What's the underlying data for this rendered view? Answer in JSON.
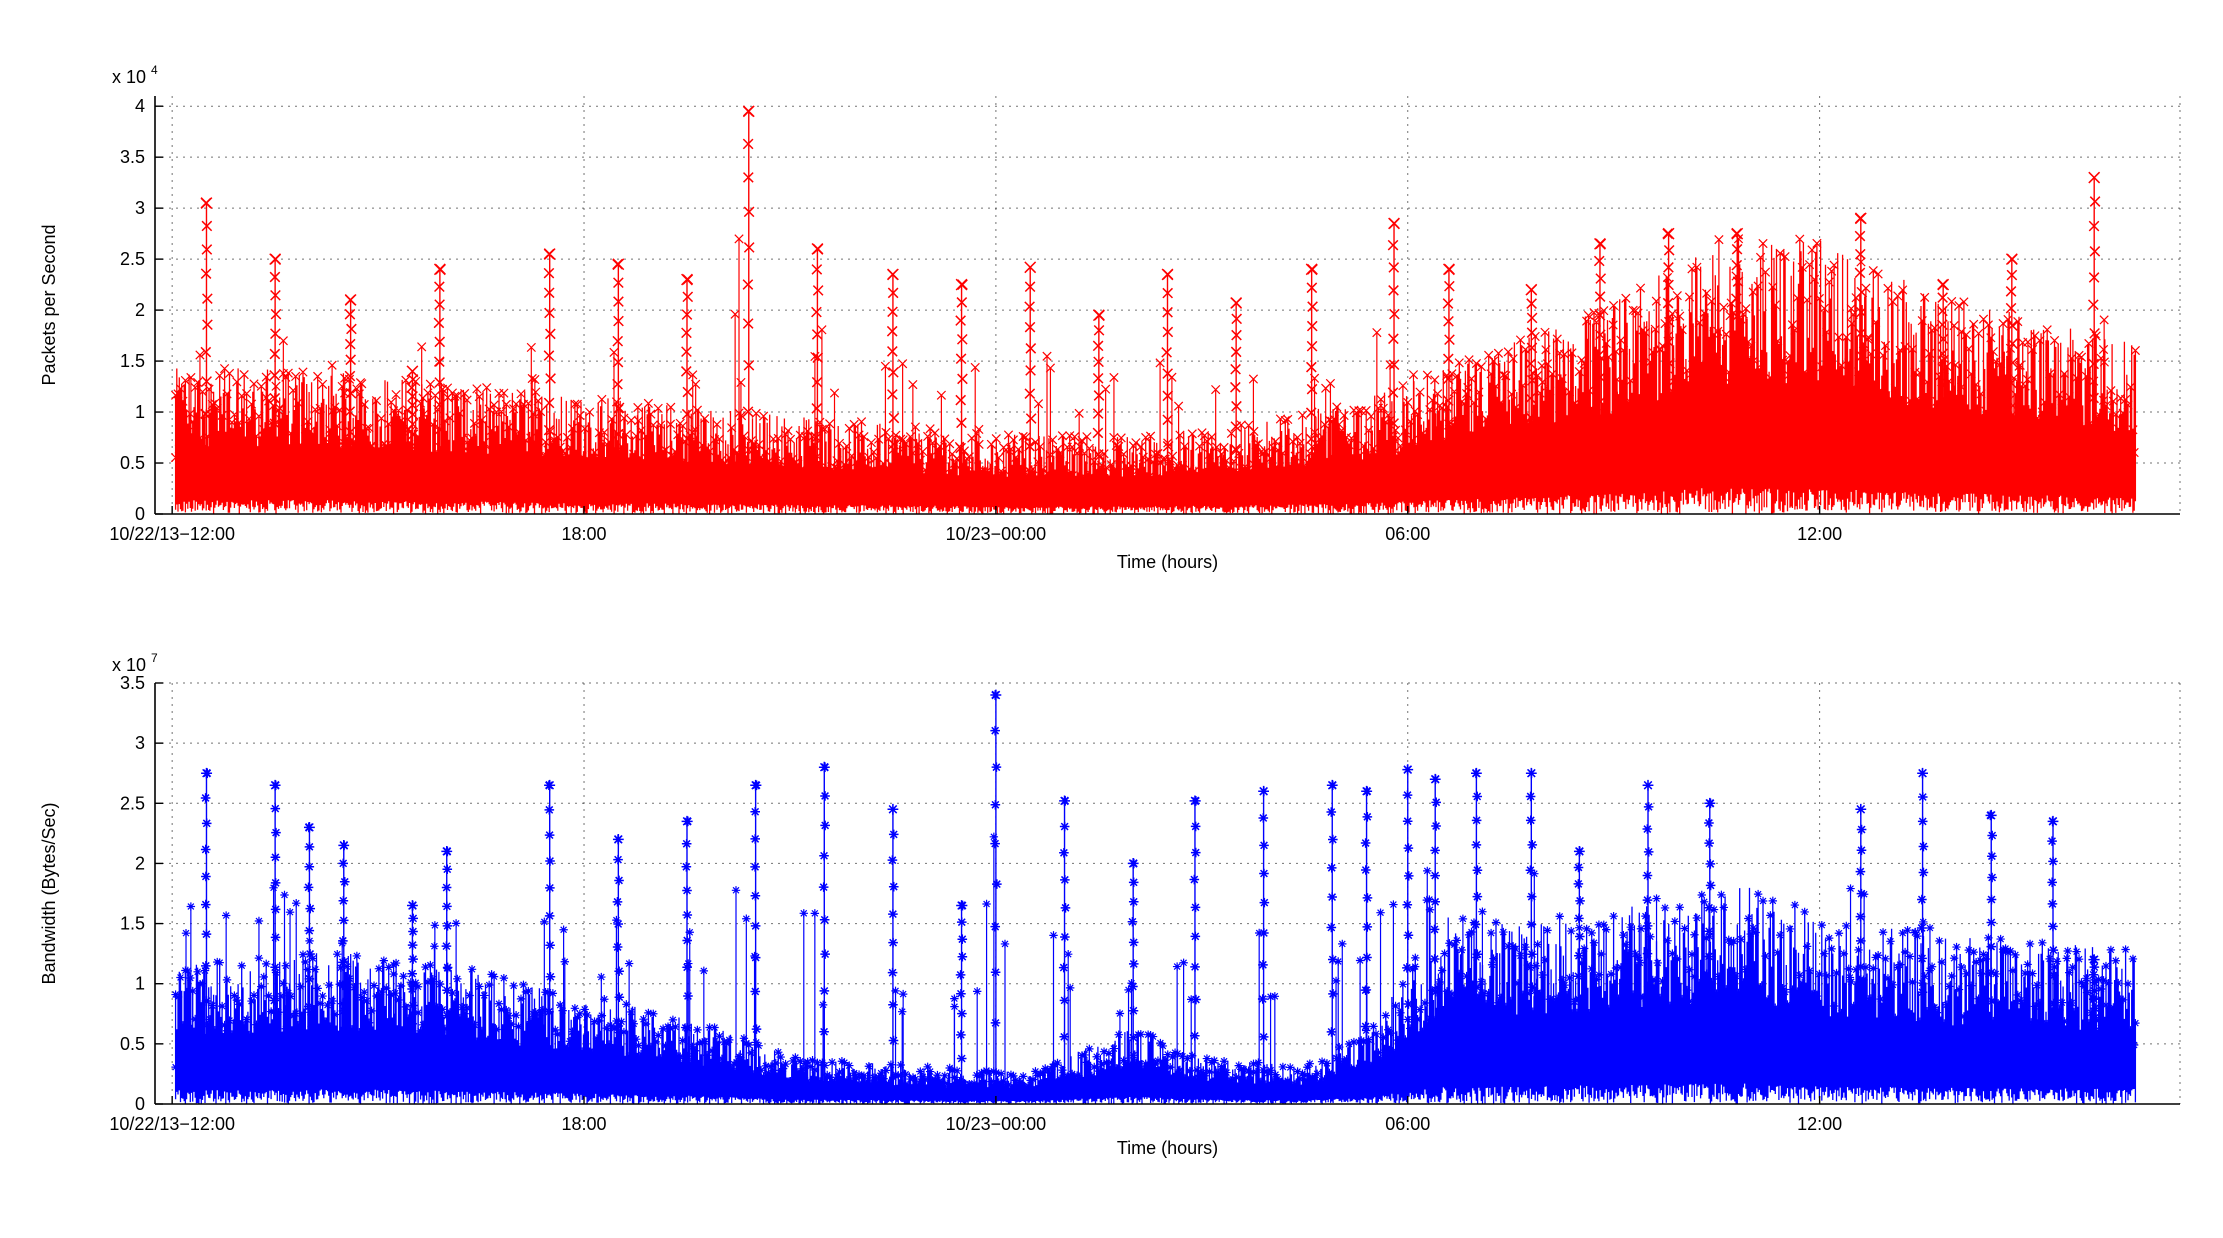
{
  "chart_data": [
    {
      "type": "line",
      "marker": "x",
      "color": "#ff0000",
      "ylabel": "Packets per Second",
      "xlabel": "Time (hours)",
      "y_exponent_base": "x 10",
      "y_exponent": "4",
      "ylim": [
        0,
        4.1
      ],
      "xlim": [
        -0.25,
        29.25
      ],
      "yticks": [
        {
          "v": 0,
          "label": "0"
        },
        {
          "v": 0.5,
          "label": "0.5"
        },
        {
          "v": 1,
          "label": "1"
        },
        {
          "v": 1.5,
          "label": "1.5"
        },
        {
          "v": 2,
          "label": "2"
        },
        {
          "v": 2.5,
          "label": "2.5"
        },
        {
          "v": 3,
          "label": "3"
        },
        {
          "v": 3.5,
          "label": "3.5"
        },
        {
          "v": 4,
          "label": "4"
        }
      ],
      "xticks": [
        {
          "v": 0,
          "label": "10/22/13−12:00"
        },
        {
          "v": 6,
          "label": "18:00"
        },
        {
          "v": 12,
          "label": "10/23−00:00"
        },
        {
          "v": 18,
          "label": "06:00"
        },
        {
          "v": 24,
          "label": "12:00"
        }
      ],
      "grid": true,
      "data_start_hour": 0.05,
      "data_end_hour": 28.6,
      "baseline": [
        [
          0.05,
          0.55
        ],
        [
          2,
          0.55
        ],
        [
          4,
          0.5
        ],
        [
          6,
          0.45
        ],
        [
          8,
          0.4
        ],
        [
          10,
          0.35
        ],
        [
          12,
          0.3
        ],
        [
          14,
          0.3
        ],
        [
          16,
          0.35
        ],
        [
          17.5,
          0.45
        ],
        [
          19,
          0.6
        ],
        [
          21,
          0.8
        ],
        [
          22.5,
          1.05
        ],
        [
          24,
          1.05
        ],
        [
          25.5,
          0.85
        ],
        [
          27,
          0.75
        ],
        [
          28.6,
          0.65
        ]
      ],
      "spikes": [
        [
          0.5,
          3.05
        ],
        [
          1.5,
          2.5
        ],
        [
          2.6,
          2.1
        ],
        [
          3.5,
          1.4
        ],
        [
          3.9,
          2.4
        ],
        [
          5.5,
          2.55
        ],
        [
          6.5,
          2.45
        ],
        [
          7.5,
          2.3
        ],
        [
          8.4,
          3.95
        ],
        [
          9.4,
          2.6
        ],
        [
          10.5,
          2.35
        ],
        [
          11.5,
          2.25
        ],
        [
          12.5,
          2.42
        ],
        [
          13.5,
          1.95
        ],
        [
          14.5,
          2.35
        ],
        [
          15.5,
          2.07
        ],
        [
          16.6,
          2.4
        ],
        [
          17.8,
          2.85
        ],
        [
          18.6,
          2.4
        ],
        [
          19.8,
          2.2
        ],
        [
          20.8,
          2.65
        ],
        [
          21.8,
          2.75
        ],
        [
          22.8,
          2.75
        ],
        [
          24.6,
          2.9
        ],
        [
          25.8,
          2.25
        ],
        [
          26.8,
          2.5
        ],
        [
          28.0,
          3.3
        ]
      ]
    },
    {
      "type": "line",
      "marker": "*",
      "color": "#0000ff",
      "ylabel": "Bandwidth (Bytes/Sec)",
      "xlabel": "Time (hours)",
      "y_exponent_base": "x 10",
      "y_exponent": "7",
      "ylim": [
        0,
        3.5
      ],
      "xlim": [
        -0.25,
        29.25
      ],
      "yticks": [
        {
          "v": 0,
          "label": "0"
        },
        {
          "v": 0.5,
          "label": "0.5"
        },
        {
          "v": 1,
          "label": "1"
        },
        {
          "v": 1.5,
          "label": "1.5"
        },
        {
          "v": 2,
          "label": "2"
        },
        {
          "v": 2.5,
          "label": "2.5"
        },
        {
          "v": 3,
          "label": "3"
        },
        {
          "v": 3.5,
          "label": "3.5"
        }
      ],
      "xticks": [
        {
          "v": 0,
          "label": "10/22/13−12:00"
        },
        {
          "v": 6,
          "label": "18:00"
        },
        {
          "v": 12,
          "label": "10/23−00:00"
        },
        {
          "v": 18,
          "label": "06:00"
        },
        {
          "v": 24,
          "label": "12:00"
        }
      ],
      "grid": true,
      "data_start_hour": 0.05,
      "data_end_hour": 28.6,
      "baseline": [
        [
          0.05,
          0.45
        ],
        [
          2,
          0.5
        ],
        [
          4,
          0.45
        ],
        [
          6,
          0.35
        ],
        [
          8,
          0.25
        ],
        [
          9,
          0.15
        ],
        [
          11,
          0.12
        ],
        [
          12.5,
          0.1
        ],
        [
          14,
          0.25
        ],
        [
          15,
          0.15
        ],
        [
          16.5,
          0.12
        ],
        [
          17.5,
          0.25
        ],
        [
          18.5,
          0.6
        ],
        [
          20,
          0.6
        ],
        [
          21.5,
          0.65
        ],
        [
          23,
          0.7
        ],
        [
          24,
          0.6
        ],
        [
          25.5,
          0.55
        ],
        [
          28.6,
          0.5
        ]
      ],
      "spikes": [
        [
          0.5,
          2.75
        ],
        [
          1.5,
          2.65
        ],
        [
          2.0,
          2.3
        ],
        [
          2.5,
          2.15
        ],
        [
          3.5,
          1.65
        ],
        [
          4.0,
          2.1
        ],
        [
          5.5,
          2.65
        ],
        [
          6.5,
          2.2
        ],
        [
          7.5,
          2.35
        ],
        [
          8.5,
          2.65
        ],
        [
          9.5,
          2.8
        ],
        [
          10.5,
          2.45
        ],
        [
          11.5,
          1.65
        ],
        [
          12.0,
          3.4
        ],
        [
          13.0,
          2.52
        ],
        [
          14.0,
          2.0
        ],
        [
          14.9,
          2.52
        ],
        [
          15.9,
          2.6
        ],
        [
          16.9,
          2.65
        ],
        [
          17.4,
          2.6
        ],
        [
          18.0,
          2.78
        ],
        [
          18.4,
          2.7
        ],
        [
          19.0,
          2.75
        ],
        [
          19.8,
          2.75
        ],
        [
          20.5,
          2.1
        ],
        [
          21.5,
          2.65
        ],
        [
          22.4,
          2.5
        ],
        [
          24.6,
          2.45
        ],
        [
          25.5,
          2.75
        ],
        [
          26.5,
          2.4
        ],
        [
          27.4,
          2.35
        ],
        [
          28.0,
          1.2
        ]
      ]
    }
  ]
}
